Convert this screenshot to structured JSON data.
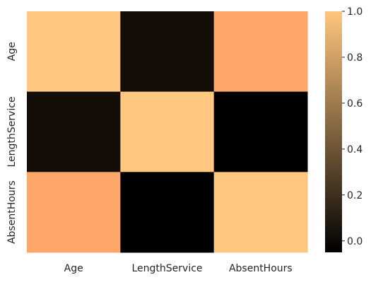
{
  "chart_data": {
    "type": "heatmap",
    "rows": [
      "Age",
      "LengthService",
      "AbsentHours"
    ],
    "columns": [
      "Age",
      "LengthService",
      "AbsentHours"
    ],
    "values": [
      [
        1.0,
        0.02,
        0.83
      ],
      [
        0.02,
        1.0,
        -0.05
      ],
      [
        0.83,
        -0.05,
        1.0
      ]
    ],
    "colormap": "copper",
    "vmin": -0.05,
    "vmax": 1.0,
    "colorbar": {
      "ticks": [
        0.0,
        0.2,
        0.4,
        0.6,
        0.8,
        1.0
      ],
      "tick_labels": [
        "0.0",
        "0.2",
        "0.4",
        "0.6",
        "0.8",
        "1.0"
      ]
    },
    "colors": {
      "low": "#000000",
      "high": "#ffc67f"
    }
  }
}
